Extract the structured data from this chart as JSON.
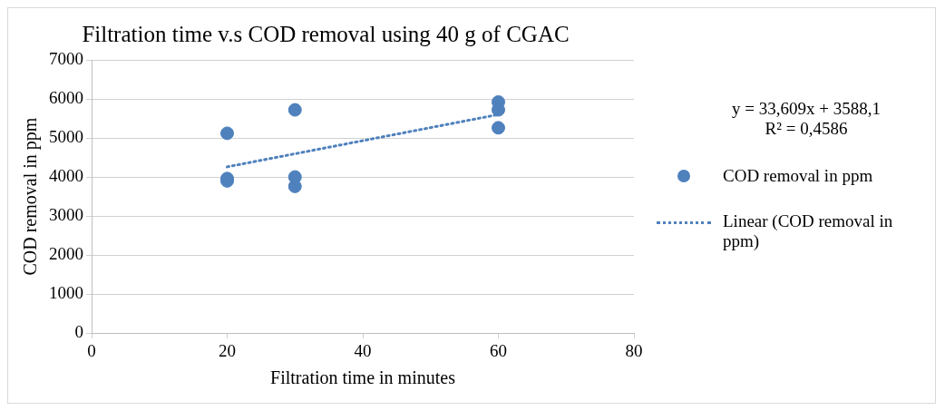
{
  "chart_data": {
    "type": "scatter",
    "title": "Filtration time v.s COD removal using 40 g of CGAC",
    "xlabel": "Filtration time in minutes",
    "ylabel": "COD removal in ppm",
    "series": [
      {
        "name": "COD removal in ppm",
        "color": "#4f81bd",
        "x": [
          20,
          20,
          20,
          30,
          30,
          30,
          60,
          60,
          60
        ],
        "values": [
          5120,
          3960,
          3900,
          5720,
          4000,
          3760,
          5920,
          5720,
          5260
        ],
        "marker": "circle"
      },
      {
        "name": "Linear (COD removal in ppm)",
        "type": "line",
        "color": "#4f81bd",
        "x": [
          20,
          60
        ],
        "values": [
          4260,
          5600
        ],
        "line_style": "dotted",
        "marker": "none"
      }
    ],
    "xlim": [
      0,
      80
    ],
    "xticks": [
      0,
      20,
      40,
      60,
      80
    ],
    "ylim": [
      0,
      7000
    ],
    "yticks": [
      0,
      1000,
      2000,
      3000,
      4000,
      5000,
      6000,
      7000
    ],
    "grid": "y",
    "legend": "right",
    "annotations": [
      "y = 33,609x + 3588,1",
      "R² = 0,4586"
    ]
  }
}
